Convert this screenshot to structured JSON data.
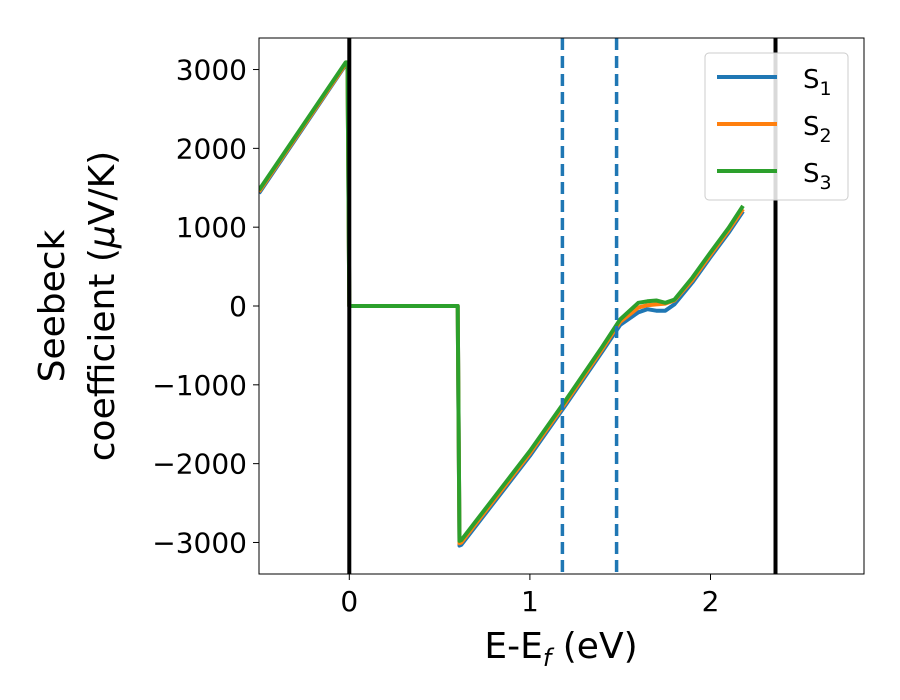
{
  "chart_data": {
    "type": "line",
    "xlabel_main": "E-E",
    "xlabel_sub": "f",
    "xlabel_unit": " (eV)",
    "ylabel_line1": "Seebeck",
    "ylabel_line2_text": "coefficient  (",
    "ylabel_mu": "μ",
    "ylabel_line2_unit": "V/K)",
    "xlim": [
      -0.5,
      2.85
    ],
    "ylim": [
      -3400,
      3400
    ],
    "xticks": [
      0,
      1,
      2
    ],
    "yticks": [
      -3000,
      -2000,
      -1000,
      0,
      1000,
      2000,
      3000
    ],
    "xtick_labels": [
      "0",
      "1",
      "2"
    ],
    "ytick_labels": [
      "−3000",
      "−2000",
      "−1000",
      "0",
      "1000",
      "2000",
      "3000"
    ],
    "grid": false,
    "legend_position": "top-right",
    "vlines": [
      {
        "x": 0.0,
        "style": "solid",
        "color": "#000000"
      },
      {
        "x": 2.36,
        "style": "solid",
        "color": "#000000"
      },
      {
        "x": 1.18,
        "style": "dashed",
        "color": "#1f77b4"
      },
      {
        "x": 1.48,
        "style": "dashed",
        "color": "#1f77b4"
      }
    ],
    "series": [
      {
        "name": "S",
        "subscript": "1",
        "color": "#1f77b4",
        "x": [
          -0.5,
          -0.02,
          -0.01,
          0.0,
          0.6,
          0.61,
          0.62,
          1.0,
          1.2,
          1.4,
          1.5,
          1.6,
          1.65,
          1.7,
          1.75,
          1.8,
          1.9,
          2.0,
          2.1,
          2.18
        ],
        "y": [
          1430,
          3060,
          3060,
          0,
          0,
          -3040,
          -3030,
          -1900,
          -1250,
          -580,
          -240,
          -80,
          -40,
          -60,
          -60,
          20,
          300,
          620,
          930,
          1200
        ]
      },
      {
        "name": "S",
        "subscript": "2",
        "color": "#ff7f0e",
        "x": [
          -0.5,
          -0.02,
          -0.01,
          0.0,
          0.6,
          0.61,
          0.62,
          1.0,
          1.2,
          1.4,
          1.5,
          1.6,
          1.65,
          1.7,
          1.75,
          1.8,
          1.9,
          2.0,
          2.1,
          2.18
        ],
        "y": [
          1450,
          3070,
          3070,
          0,
          0,
          -3010,
          -3000,
          -1870,
          -1220,
          -550,
          -200,
          -20,
          10,
          20,
          30,
          70,
          330,
          650,
          960,
          1230
        ]
      },
      {
        "name": "S",
        "subscript": "3",
        "color": "#2ca02c",
        "x": [
          -0.5,
          -0.02,
          -0.01,
          0.0,
          0.6,
          0.61,
          0.62,
          1.0,
          1.2,
          1.4,
          1.5,
          1.6,
          1.65,
          1.7,
          1.75,
          1.8,
          1.9,
          2.0,
          2.1,
          2.18
        ],
        "y": [
          1470,
          3090,
          3090,
          0,
          0,
          -2980,
          -2970,
          -1840,
          -1190,
          -520,
          -170,
          40,
          60,
          70,
          40,
          80,
          360,
          680,
          990,
          1270
        ]
      }
    ]
  }
}
